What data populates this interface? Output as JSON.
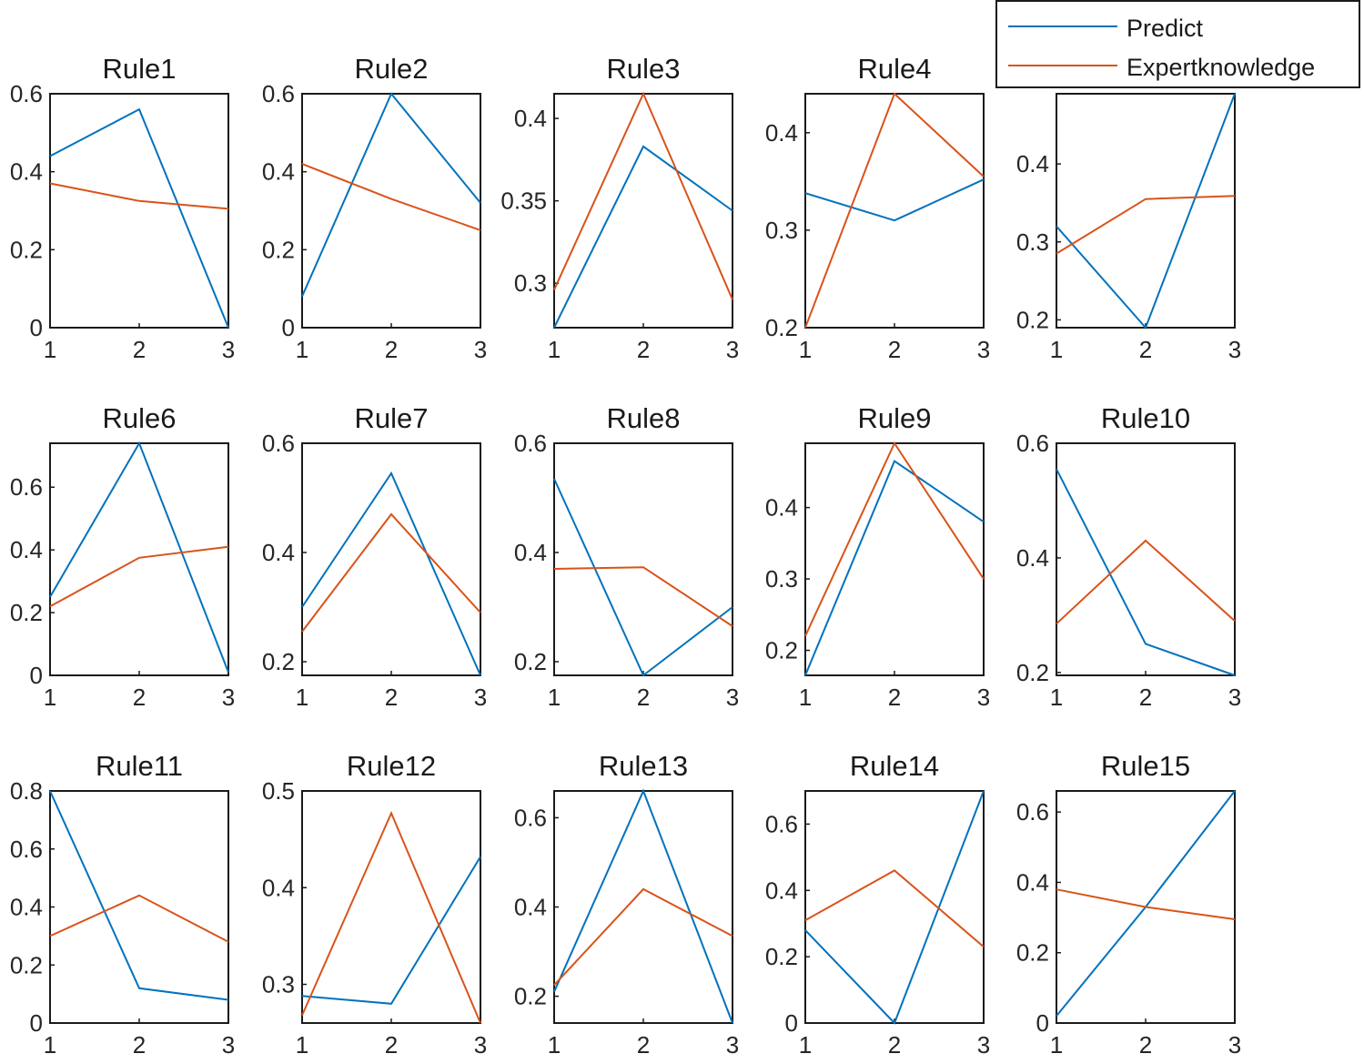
{
  "legend": {
    "entries": [
      {
        "label": "Predict",
        "color": "#0072BD"
      },
      {
        "label": "Expertknowledge",
        "color": "#D95319"
      }
    ]
  },
  "chart_data": [
    {
      "type": "line",
      "title": "Rule1",
      "categories": [
        "1",
        "2",
        "3"
      ],
      "ylim": [
        0,
        0.6
      ],
      "yticks": [
        "0",
        "0.2",
        "0.4",
        "0.6"
      ],
      "series": [
        {
          "name": "Predict",
          "values": [
            0.44,
            0.56,
            0.0
          ]
        },
        {
          "name": "Expertknowledge",
          "values": [
            0.37,
            0.325,
            0.305
          ]
        }
      ]
    },
    {
      "type": "line",
      "title": "Rule2",
      "categories": [
        "1",
        "2",
        "3"
      ],
      "ylim": [
        0,
        0.6
      ],
      "yticks": [
        "0",
        "0.2",
        "0.4",
        "0.6"
      ],
      "series": [
        {
          "name": "Predict",
          "values": [
            0.08,
            0.6,
            0.32
          ]
        },
        {
          "name": "Expertknowledge",
          "values": [
            0.42,
            0.33,
            0.25
          ]
        }
      ]
    },
    {
      "type": "line",
      "title": "Rule3",
      "categories": [
        "1",
        "2",
        "3"
      ],
      "ylim": [
        0.273,
        0.415
      ],
      "yticks": [
        "0.3",
        "0.35",
        "0.4"
      ],
      "series": [
        {
          "name": "Predict",
          "values": [
            0.273,
            0.383,
            0.344
          ]
        },
        {
          "name": "Expertknowledge",
          "values": [
            0.296,
            0.415,
            0.29
          ]
        }
      ]
    },
    {
      "type": "line",
      "title": "Rule4",
      "categories": [
        "1",
        "2",
        "3"
      ],
      "ylim": [
        0.2,
        0.44
      ],
      "yticks": [
        "0.2",
        "0.3",
        "0.4"
      ],
      "series": [
        {
          "name": "Predict",
          "values": [
            0.338,
            0.31,
            0.352
          ]
        },
        {
          "name": "Expertknowledge",
          "values": [
            0.2,
            0.44,
            0.355
          ]
        }
      ]
    },
    {
      "type": "line",
      "title": "",
      "categories": [
        "1",
        "2",
        "3"
      ],
      "ylim": [
        0.19,
        0.49
      ],
      "yticks": [
        "0.2",
        "0.3",
        "0.4"
      ],
      "series": [
        {
          "name": "Predict",
          "values": [
            0.32,
            0.19,
            0.49
          ]
        },
        {
          "name": "Expertknowledge",
          "values": [
            0.285,
            0.355,
            0.359
          ]
        }
      ]
    },
    {
      "type": "line",
      "title": "Rule6",
      "categories": [
        "1",
        "2",
        "3"
      ],
      "ylim": [
        0,
        0.74
      ],
      "yticks": [
        "0",
        "0.2",
        "0.4",
        "0.6"
      ],
      "series": [
        {
          "name": "Predict",
          "values": [
            0.25,
            0.74,
            0.01
          ]
        },
        {
          "name": "Expertknowledge",
          "values": [
            0.22,
            0.375,
            0.41
          ]
        }
      ]
    },
    {
      "type": "line",
      "title": "Rule7",
      "categories": [
        "1",
        "2",
        "3"
      ],
      "ylim": [
        0.175,
        0.6
      ],
      "yticks": [
        "0.2",
        "0.4",
        "0.6"
      ],
      "series": [
        {
          "name": "Predict",
          "values": [
            0.3,
            0.545,
            0.175
          ]
        },
        {
          "name": "Expertknowledge",
          "values": [
            0.255,
            0.47,
            0.29
          ]
        }
      ]
    },
    {
      "type": "line",
      "title": "Rule8",
      "categories": [
        "1",
        "2",
        "3"
      ],
      "ylim": [
        0.175,
        0.6
      ],
      "yticks": [
        "0.2",
        "0.4",
        "0.6"
      ],
      "series": [
        {
          "name": "Predict",
          "values": [
            0.535,
            0.175,
            0.3
          ]
        },
        {
          "name": "Expertknowledge",
          "values": [
            0.37,
            0.373,
            0.265
          ]
        }
      ]
    },
    {
      "type": "line",
      "title": "Rule9",
      "categories": [
        "1",
        "2",
        "3"
      ],
      "ylim": [
        0.165,
        0.49
      ],
      "yticks": [
        "0.2",
        "0.3",
        "0.4"
      ],
      "series": [
        {
          "name": "Predict",
          "values": [
            0.165,
            0.465,
            0.38
          ]
        },
        {
          "name": "Expertknowledge",
          "values": [
            0.22,
            0.49,
            0.3
          ]
        }
      ]
    },
    {
      "type": "line",
      "title": "Rule10",
      "categories": [
        "1",
        "2",
        "3"
      ],
      "ylim": [
        0.195,
        0.6
      ],
      "yticks": [
        "0.2",
        "0.4",
        "0.6"
      ],
      "series": [
        {
          "name": "Predict",
          "values": [
            0.555,
            0.25,
            0.195
          ]
        },
        {
          "name": "Expertknowledge",
          "values": [
            0.285,
            0.43,
            0.29
          ]
        }
      ]
    },
    {
      "type": "line",
      "title": "Rule11",
      "categories": [
        "1",
        "2",
        "3"
      ],
      "ylim": [
        0,
        0.8
      ],
      "yticks": [
        "0",
        "0.2",
        "0.4",
        "0.6",
        "0.8"
      ],
      "series": [
        {
          "name": "Predict",
          "values": [
            0.8,
            0.12,
            0.08
          ]
        },
        {
          "name": "Expertknowledge",
          "values": [
            0.3,
            0.44,
            0.28
          ]
        }
      ]
    },
    {
      "type": "line",
      "title": "Rule12",
      "categories": [
        "1",
        "2",
        "3"
      ],
      "ylim": [
        0.26,
        0.5
      ],
      "yticks": [
        "0.3",
        "0.4",
        "0.5"
      ],
      "series": [
        {
          "name": "Predict",
          "values": [
            0.288,
            0.28,
            0.432
          ]
        },
        {
          "name": "Expertknowledge",
          "values": [
            0.268,
            0.477,
            0.26
          ]
        }
      ]
    },
    {
      "type": "line",
      "title": "Rule13",
      "categories": [
        "1",
        "2",
        "3"
      ],
      "ylim": [
        0.14,
        0.66
      ],
      "yticks": [
        "0.2",
        "0.4",
        "0.6"
      ],
      "series": [
        {
          "name": "Predict",
          "values": [
            0.21,
            0.66,
            0.14
          ]
        },
        {
          "name": "Expertknowledge",
          "values": [
            0.225,
            0.44,
            0.335
          ]
        }
      ]
    },
    {
      "type": "line",
      "title": "Rule14",
      "categories": [
        "1",
        "2",
        "3"
      ],
      "ylim": [
        0,
        0.7
      ],
      "yticks": [
        "0",
        "0.2",
        "0.4",
        "0.6"
      ],
      "series": [
        {
          "name": "Predict",
          "values": [
            0.28,
            0.0,
            0.7
          ]
        },
        {
          "name": "Expertknowledge",
          "values": [
            0.31,
            0.46,
            0.23
          ]
        }
      ]
    },
    {
      "type": "line",
      "title": "Rule15",
      "categories": [
        "1",
        "2",
        "3"
      ],
      "ylim": [
        0,
        0.66
      ],
      "yticks": [
        "0",
        "0.2",
        "0.4",
        "0.6"
      ],
      "series": [
        {
          "name": "Predict",
          "values": [
            0.02,
            0.33,
            0.66
          ]
        },
        {
          "name": "Expertknowledge",
          "values": [
            0.38,
            0.33,
            0.295
          ]
        }
      ]
    }
  ]
}
